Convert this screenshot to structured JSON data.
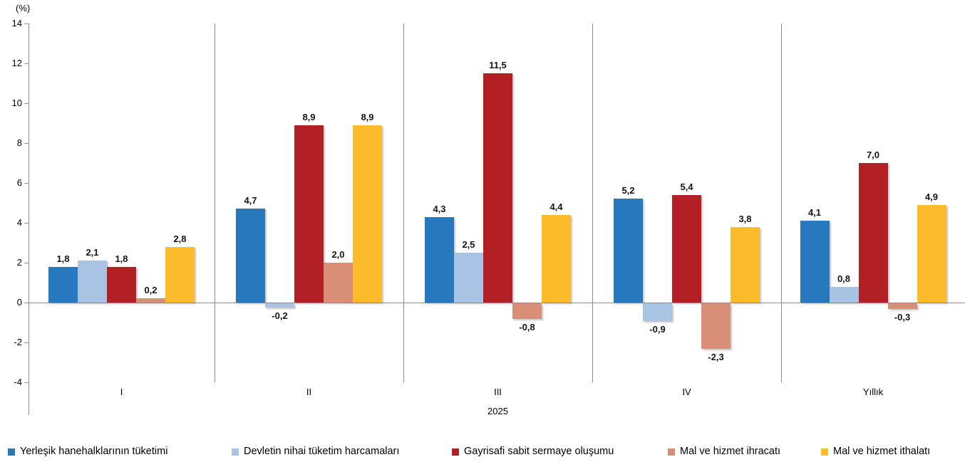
{
  "chart_data": {
    "type": "bar",
    "ylabel": "(%)",
    "categories": [
      "I",
      "II",
      "III",
      "IV",
      "Yıllık"
    ],
    "x_axis_year_label": "2025",
    "series": [
      {
        "name": "Yerleşik hanehalklarının tüketimi",
        "color": "#2878BE",
        "values": [
          1.8,
          4.7,
          4.3,
          5.2,
          4.1
        ]
      },
      {
        "name": "Devletin nihai tüketim harcamaları",
        "color": "#A9C3E5",
        "values": [
          2.1,
          -0.2,
          2.5,
          -0.9,
          0.8
        ]
      },
      {
        "name": "Gayrisafi sabit sermaye oluşumu",
        "color": "#B22025",
        "values": [
          1.8,
          8.9,
          11.5,
          5.4,
          7.0
        ]
      },
      {
        "name": "Mal ve hizmet ihracatı",
        "color": "#D98F77",
        "values": [
          0.2,
          2.0,
          -0.8,
          -2.3,
          -0.3
        ]
      },
      {
        "name": "Mal ve hizmet ithalatı",
        "color": "#FBBB2B",
        "values": [
          2.8,
          8.9,
          4.4,
          3.8,
          4.9
        ]
      }
    ],
    "y_ticks": [
      14,
      12,
      10,
      8,
      6,
      4,
      2,
      0,
      -2,
      -4
    ],
    "ylim": [
      -4,
      14
    ],
    "grid": "vertical category separators only",
    "legend_position": "bottom",
    "value_labels": "shown, comma decimal separator",
    "axis_color": "#8C8C8C"
  }
}
